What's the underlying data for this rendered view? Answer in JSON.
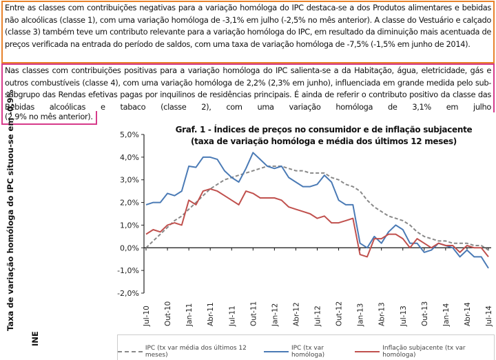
{
  "paragraph1": "Entre as classes com contribuições negativas para a variação homóloga do IPC destaca-se a dos Produtos alimentares e bebidas não alcoólicas (classe 1), com uma variação homóloga de -3,1% em julho (-2,5% no mês anterior). A classe do Vestuário e calçado (classe 3) também teve um contributo relevante para a variação homóloga do IPC, em resultado da diminuição mais acentuada de preços verificada na entrada do período de saldos, com uma taxa de variação homóloga de -7,5% (-1,5% em junho de 2014).",
  "paragraph2": "Nas classes com contribuições positivas para a variação homóloga do IPC salienta-se a da Habitação, água, eletricidade, gás e outros combustíveis (classe 4), com uma variação homóloga de 2,2% (2,3% em junho), influenciada em grande medida pelo sub-subgrupo das Rendas efetivas pagas por inquilinos de residências principais. É ainda de referir o contributo positivo da classe das Bebidas alcoólicas e tabaco (classe 2), com uma variação homóloga de 3,1% em julho",
  "paragraph2_tail": "(2,9% no mês anterior).",
  "side_caption": "Taxa de variação homóloga do IPC situou-se em -0,9%",
  "source": "INE",
  "chart_data": {
    "type": "line",
    "title": "Graf. 1 - Índices de preços no consumidor e de inflação subjacente",
    "subtitle": "(taxa de variação homóloga e média dos últimos 12 meses)",
    "ylim": [
      -2,
      5
    ],
    "yticks": [
      "5,0%",
      "4,0%",
      "3,0%",
      "2,0%",
      "1,0%",
      "0,0%",
      "-1,0%",
      "-2,0%"
    ],
    "x_tick_labels": [
      "Jul-10",
      "Out-10",
      "Jan-11",
      "Abr-11",
      "Jul-11",
      "Out-11",
      "Jan-12",
      "Abr-12",
      "Jul-12",
      "Out-12",
      "Jan-13",
      "Abr-13",
      "Jul-13",
      "Out-13",
      "Jan-14",
      "Abr-14",
      "Jul-14"
    ],
    "months_count": 49,
    "legend_position": "bottom",
    "series": [
      {
        "name": "IPC (tx var média dos últimos 12 meses)",
        "color": "#888888",
        "dashed": true,
        "values": [
          0.0,
          0.3,
          0.6,
          0.9,
          1.2,
          1.4,
          1.7,
          2.0,
          2.3,
          2.6,
          2.8,
          3.0,
          3.1,
          3.2,
          3.3,
          3.4,
          3.5,
          3.6,
          3.6,
          3.6,
          3.5,
          3.4,
          3.4,
          3.3,
          3.3,
          3.3,
          3.1,
          3.0,
          2.8,
          2.7,
          2.5,
          2.1,
          1.8,
          1.6,
          1.4,
          1.3,
          1.2,
          1.0,
          0.7,
          0.5,
          0.4,
          0.3,
          0.3,
          0.2,
          0.2,
          0.2,
          0.1,
          0.1,
          -0.1
        ]
      },
      {
        "name": "IPC (tx var homóloga)",
        "color": "#4a7ab5",
        "dashed": false,
        "values": [
          1.9,
          2.0,
          2.0,
          2.4,
          2.3,
          2.5,
          3.6,
          3.55,
          4.0,
          4.0,
          3.9,
          3.4,
          3.1,
          2.9,
          3.5,
          4.2,
          3.9,
          3.6,
          3.5,
          3.6,
          3.1,
          2.9,
          2.7,
          2.7,
          2.8,
          3.2,
          2.9,
          2.1,
          1.9,
          1.9,
          0.2,
          0.0,
          0.5,
          0.2,
          0.7,
          1.0,
          0.8,
          0.2,
          0.2,
          -0.2,
          -0.1,
          0.2,
          0.1,
          0.0,
          -0.4,
          -0.1,
          -0.4,
          -0.4,
          -0.9
        ]
      },
      {
        "name": "Inflação subjacente (tx var homóloga)",
        "color": "#c0504d",
        "dashed": false,
        "values": [
          0.6,
          0.8,
          0.7,
          1.0,
          1.1,
          1.0,
          2.1,
          1.9,
          2.5,
          2.6,
          2.5,
          2.3,
          2.1,
          1.9,
          2.5,
          2.4,
          2.2,
          2.2,
          2.2,
          2.1,
          1.8,
          1.7,
          1.6,
          1.5,
          1.3,
          1.4,
          1.1,
          1.1,
          1.2,
          1.3,
          -0.3,
          -0.4,
          0.4,
          0.4,
          0.6,
          0.6,
          0.4,
          0.0,
          0.4,
          0.2,
          0.0,
          0.2,
          0.1,
          0.1,
          -0.2,
          0.1,
          0.0,
          0.0,
          -0.4
        ]
      }
    ]
  }
}
